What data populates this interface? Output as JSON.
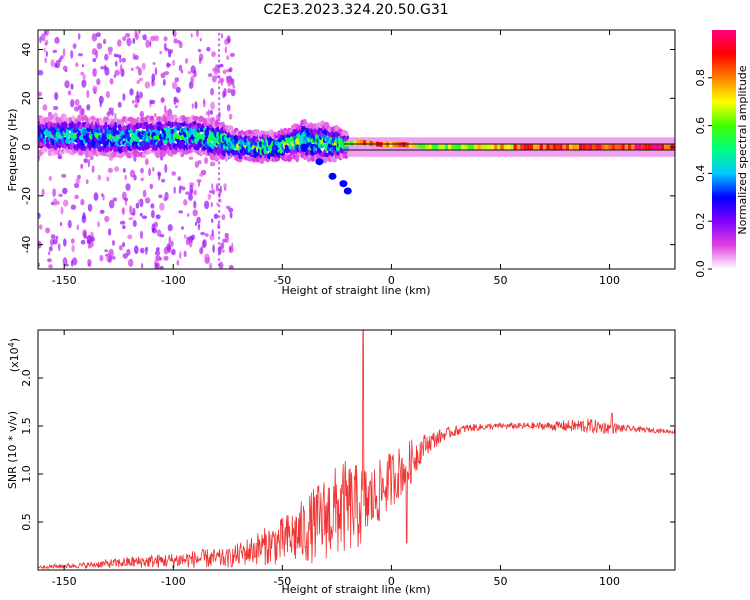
{
  "title": "C2E3.2023.324.20.50.G31",
  "colors": {
    "snr_line": "#f03232",
    "ridge": "#111111"
  },
  "chart_data": [
    {
      "type": "heatmap",
      "name": "spectrogram",
      "xlabel": "Height of straight line (km)",
      "ylabel": "Frequency (Hz)",
      "xlim": [
        -162,
        130
      ],
      "ylim": [
        -50,
        48
      ],
      "xticks": [
        -150,
        -100,
        -50,
        0,
        50,
        100
      ],
      "yticks": [
        -40,
        -20,
        0,
        20,
        40
      ],
      "ridge_frequency_hz": 0,
      "ridge_x_start_km": -22,
      "colorbar": {
        "label": "Normalized spectral amplitude",
        "range": [
          0,
          1
        ],
        "ticks": [
          0.0,
          0.2,
          0.4,
          0.6,
          0.8
        ],
        "stops": [
          "#ffffff",
          "#e040e0",
          "#8000ff",
          "#0000ff",
          "#00c8ff",
          "#00ff80",
          "#40ff00",
          "#ffff00",
          "#ff8000",
          "#ff0000",
          "#ff0080"
        ]
      },
      "band": [
        {
          "x": -160,
          "f": 5,
          "w": 4,
          "a": 0.35
        },
        {
          "x": -145,
          "f": 5,
          "w": 4,
          "a": 0.4
        },
        {
          "x": -130,
          "f": 4,
          "w": 4,
          "a": 0.42
        },
        {
          "x": -115,
          "f": 4,
          "w": 4,
          "a": 0.45
        },
        {
          "x": -100,
          "f": 5,
          "w": 4,
          "a": 0.45
        },
        {
          "x": -90,
          "f": 5,
          "w": 4,
          "a": 0.45
        },
        {
          "x": -80,
          "f": 3,
          "w": 4,
          "a": 0.5
        },
        {
          "x": -70,
          "f": 1,
          "w": 3,
          "a": 0.5
        },
        {
          "x": -60,
          "f": 0,
          "w": 3,
          "a": 0.5
        },
        {
          "x": -50,
          "f": 1,
          "w": 3,
          "a": 0.5
        },
        {
          "x": -40,
          "f": 3,
          "w": 4,
          "a": 0.5
        },
        {
          "x": -30,
          "f": 2,
          "w": 4,
          "a": 0.5
        },
        {
          "x": -22,
          "f": 1,
          "w": 3,
          "a": 0.55
        },
        {
          "x": -15,
          "f": 2,
          "w": 1,
          "a": 0.85
        },
        {
          "x": -5,
          "f": 1,
          "w": 1,
          "a": 0.85
        },
        {
          "x": 5,
          "f": 1,
          "w": 1,
          "a": 0.85
        },
        {
          "x": 20,
          "f": 0,
          "w": 1,
          "a": 0.6
        },
        {
          "x": 40,
          "f": 0,
          "w": 1,
          "a": 0.7
        },
        {
          "x": 60,
          "f": 0,
          "w": 1,
          "a": 0.85
        },
        {
          "x": 80,
          "f": 0,
          "w": 1,
          "a": 0.9
        },
        {
          "x": 100,
          "f": 0,
          "w": 1,
          "a": 0.95
        },
        {
          "x": 130,
          "f": 0,
          "w": 1,
          "a": 0.95
        }
      ],
      "branch": [
        {
          "x": -40,
          "f": 0
        },
        {
          "x": -33,
          "f": -6
        },
        {
          "x": -27,
          "f": -12
        },
        {
          "x": -22,
          "f": -15
        },
        {
          "x": -20,
          "f": -18
        }
      ]
    },
    {
      "type": "line",
      "name": "snr",
      "xlabel": "Height of straight line (km)",
      "ylabel": "SNR (10 * v/v)",
      "y_multiplier": "(x10",
      "y_multiplier_exp": "4",
      "y_multiplier_close": ")",
      "xlim": [
        -162,
        130
      ],
      "ylim": [
        0,
        2.5
      ],
      "xticks": [
        -150,
        -100,
        -50,
        0,
        50,
        100
      ],
      "yticks": [
        0.5,
        1.0,
        1.5,
        2.0
      ],
      "envelope": [
        {
          "x": -162,
          "y": 0.03,
          "n": 0.02
        },
        {
          "x": -140,
          "y": 0.05,
          "n": 0.03
        },
        {
          "x": -120,
          "y": 0.08,
          "n": 0.06
        },
        {
          "x": -100,
          "y": 0.1,
          "n": 0.08
        },
        {
          "x": -85,
          "y": 0.12,
          "n": 0.1
        },
        {
          "x": -75,
          "y": 0.12,
          "n": 0.1
        },
        {
          "x": -65,
          "y": 0.2,
          "n": 0.15
        },
        {
          "x": -50,
          "y": 0.3,
          "n": 0.25
        },
        {
          "x": -40,
          "y": 0.4,
          "n": 0.35
        },
        {
          "x": -30,
          "y": 0.55,
          "n": 0.45
        },
        {
          "x": -22,
          "y": 0.65,
          "n": 0.5
        },
        {
          "x": -15,
          "y": 0.65,
          "n": 0.45
        },
        {
          "x": -8,
          "y": 0.75,
          "n": 0.35
        },
        {
          "x": 0,
          "y": 0.95,
          "n": 0.3
        },
        {
          "x": 8,
          "y": 1.1,
          "n": 0.25
        },
        {
          "x": 15,
          "y": 1.3,
          "n": 0.12
        },
        {
          "x": 25,
          "y": 1.42,
          "n": 0.06
        },
        {
          "x": 35,
          "y": 1.48,
          "n": 0.04
        },
        {
          "x": 50,
          "y": 1.5,
          "n": 0.03
        },
        {
          "x": 70,
          "y": 1.5,
          "n": 0.04
        },
        {
          "x": 90,
          "y": 1.5,
          "n": 0.08
        },
        {
          "x": 100,
          "y": 1.48,
          "n": 0.06
        },
        {
          "x": 110,
          "y": 1.47,
          "n": 0.03
        },
        {
          "x": 130,
          "y": 1.44,
          "n": 0.02
        }
      ],
      "spikes": [
        {
          "x": -13,
          "y": 2.5
        },
        {
          "x": 7,
          "y": 0.28
        },
        {
          "x": 101,
          "y": 1.63
        }
      ]
    }
  ]
}
